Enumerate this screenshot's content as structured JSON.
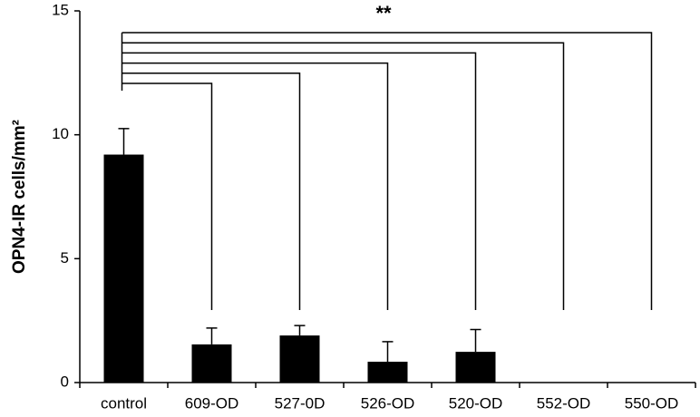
{
  "chart_data": {
    "type": "bar",
    "y_label": "OPN4-IR cells/mm²",
    "annotation": "**",
    "categories": [
      "control",
      "609-OD",
      "527-0D",
      "526-OD",
      "520-OD",
      "552-OD",
      "550-OD"
    ],
    "values": [
      9.2,
      1.54,
      1.9,
      0.84,
      1.24,
      0,
      0
    ],
    "errors": [
      1.05,
      0.66,
      0.4,
      0.81,
      0.9,
      null,
      null
    ],
    "color": "#000000",
    "ylim": [
      0,
      15
    ],
    "yticks": [
      0,
      5,
      10,
      15
    ],
    "grid": false
  }
}
